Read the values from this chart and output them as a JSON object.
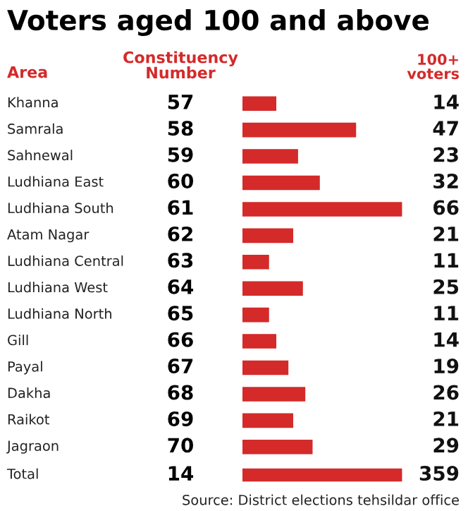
{
  "chart_data": [
    {
      "type": "bar",
      "orientation": "horizontal",
      "title": "Voters aged 100 and above",
      "ylabel": "Area",
      "xlabel": "100+ voters",
      "color": "#d42a2a",
      "data_labels": true,
      "categories": [
        "Khanna",
        "Samrala",
        "Sahnewal",
        "Ludhiana East",
        "Ludhiana South",
        "Atam Nagar",
        "Ludhiana Central",
        "Ludhiana West",
        "Ludhiana North",
        "Gill",
        "Payal",
        "Dakha",
        "Raikot",
        "Jagraon"
      ],
      "values": [
        14,
        47,
        23,
        32,
        66,
        21,
        11,
        25,
        11,
        14,
        19,
        26,
        21,
        29
      ],
      "annotations": [
        "Constituency Number",
        "57",
        "58",
        "59",
        "60",
        "61",
        "62",
        "63",
        "64",
        "65",
        "66",
        "67",
        "68",
        "69",
        "70"
      ]
    },
    {
      "type": "bar",
      "orientation": "horizontal",
      "color": "#d42a2a",
      "data_labels": true,
      "categories": [
        "Total"
      ],
      "values": [
        359
      ],
      "annotations": [
        "14",
        "Source: District elections tehsildar office"
      ]
    }
  ]
}
